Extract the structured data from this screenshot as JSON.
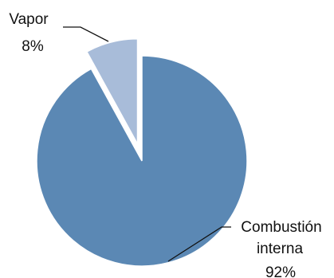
{
  "chart_data": {
    "type": "pie",
    "title": "",
    "exploded": "Vapor",
    "slices": [
      {
        "name": "Vapor",
        "value": 8,
        "label": "8%",
        "color": "#a8bcd9"
      },
      {
        "name": "Combustión interna",
        "value": 92,
        "label": "92%",
        "color": "#5b88b4",
        "name_lines": [
          "Combustión",
          "interna"
        ]
      }
    ]
  }
}
